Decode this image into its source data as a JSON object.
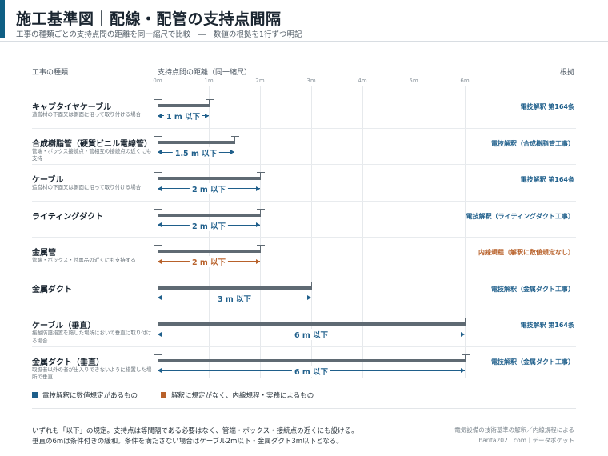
{
  "header": {
    "title": "施工基準図｜配線・配管の支持点間隔",
    "subtitle": "工事の種類ごとの支持点間の距離を同一縮尺で比較　―　数値の根拠を1行ずつ明記"
  },
  "columns": {
    "type": "工事の種類",
    "distance": "支持点間の距離（同一縮尺）",
    "basis": "根拠"
  },
  "colors": {
    "accent": "#0f5f84",
    "electrical_rule": "#1f5f8b",
    "internal_rule": "#b8612a",
    "bar": "#5f6a73"
  },
  "chart_data": {
    "type": "bar",
    "orientation": "horizontal",
    "x_unit": "m",
    "xlim": [
      0,
      6
    ],
    "x_ticks": [
      "0m",
      "1m",
      "2m",
      "3m",
      "4m",
      "5m",
      "6m"
    ],
    "rows": [
      {
        "name": "キャブタイヤケーブル",
        "note": "造営材の下面又は側面に沿って取り付ける場合",
        "value": 1,
        "label": "1 m 以下",
        "basis": "電技解釈 第164条",
        "category": "electrical_rule"
      },
      {
        "name": "合成樹脂管（硬質ビニル電線管）",
        "note": "管端・ボックス接続点・管相互の接続点の近くにも支持",
        "value": 1.5,
        "label": "1.5 m 以下",
        "basis": "電技解釈（合成樹脂管工事）",
        "category": "electrical_rule"
      },
      {
        "name": "ケーブル",
        "note": "造営材の下面又は側面に沿って取り付ける場合",
        "value": 2,
        "label": "2 m 以下",
        "basis": "電技解釈 第164条",
        "category": "electrical_rule"
      },
      {
        "name": "ライティングダクト",
        "note": "",
        "value": 2,
        "label": "2 m 以下",
        "basis": "電技解釈（ライティングダクト工事）",
        "category": "electrical_rule"
      },
      {
        "name": "金属管",
        "note": "管端・ボックス・付属品の近くにも支持する",
        "value": 2,
        "label": "2 m 以下",
        "basis": "内線規程（解釈に数値規定なし）",
        "category": "internal_rule"
      },
      {
        "name": "金属ダクト",
        "note": "",
        "value": 3,
        "label": "3 m 以下",
        "basis": "電技解釈（金属ダクト工事）",
        "category": "electrical_rule"
      },
      {
        "name": "ケーブル（垂直）",
        "note": "接触防護措置を施した場所において垂直に取り付ける場合",
        "value": 6,
        "label": "6 m 以下",
        "basis": "電技解釈 第164条",
        "category": "electrical_rule"
      },
      {
        "name": "金属ダクト（垂直）",
        "note": "取扱者以外の者が出入りできないように措置した場所で垂直",
        "value": 6,
        "label": "6 m 以下",
        "basis": "電技解釈（金属ダクト工事）",
        "category": "electrical_rule"
      }
    ],
    "legend": [
      {
        "label": "電技解釈に数値規定があるもの",
        "category": "electrical_rule"
      },
      {
        "label": "解釈に規定がなく、内線規程・実務によるもの",
        "category": "internal_rule"
      }
    ]
  },
  "footer": {
    "line1": "いずれも「以下」の規定。支持点は等間隔である必要はなく、管端・ボックス・接続点の近くにも設ける。",
    "line2": "垂直の6mは条件付きの緩和。条件を満たさない場合はケーブル2m以下・金属ダクト3m以下となる。",
    "source": "電気設備の技術基準の解釈／内線規程による",
    "credit": "harita2021.com｜データポケット"
  }
}
